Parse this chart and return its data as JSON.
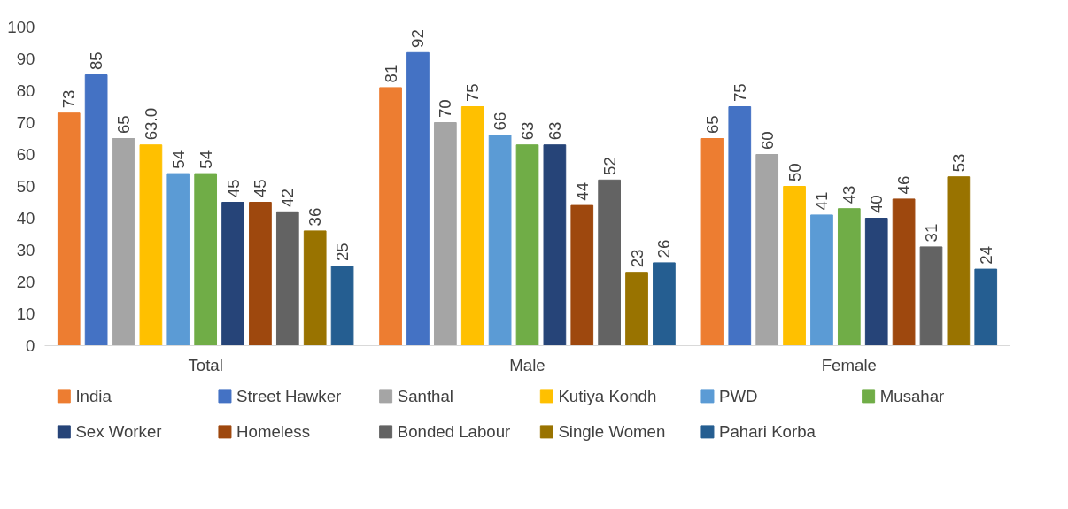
{
  "chart_data": {
    "type": "bar",
    "categories": [
      "Total",
      "Male",
      "Female"
    ],
    "series": [
      {
        "name": "India",
        "color": "#ed7d31",
        "values": [
          73,
          81,
          65
        ]
      },
      {
        "name": "Street Hawker",
        "color": "#4472c4",
        "values": [
          85,
          92,
          75
        ]
      },
      {
        "name": "Santhal",
        "color": "#a5a5a5",
        "values": [
          65,
          70,
          60
        ]
      },
      {
        "name": "Kutiya Kondh",
        "color": "#ffc000",
        "values": [
          63,
          75,
          50
        ],
        "value_labels": [
          "63.0",
          "75",
          "50"
        ]
      },
      {
        "name": "PWD",
        "color": "#5b9bd5",
        "values": [
          54,
          66,
          41
        ]
      },
      {
        "name": "Musahar",
        "color": "#70ad47",
        "values": [
          54,
          63,
          43
        ]
      },
      {
        "name": "Sex Worker",
        "color": "#264478",
        "values": [
          45,
          63,
          40
        ]
      },
      {
        "name": "Homeless",
        "color": "#9e480e",
        "values": [
          45,
          44,
          46
        ]
      },
      {
        "name": "Bonded Labour",
        "color": "#636363",
        "values": [
          42,
          52,
          31
        ]
      },
      {
        "name": "Single Women",
        "color": "#997300",
        "values": [
          36,
          23,
          53
        ]
      },
      {
        "name": "Pahari Korba",
        "color": "#255e91",
        "values": [
          25,
          26,
          24
        ]
      }
    ],
    "ylim": [
      0,
      100
    ],
    "yticks": [
      0,
      10,
      20,
      30,
      40,
      50,
      60,
      70,
      80,
      90,
      100
    ],
    "data_labels": true,
    "legend": "bottom",
    "grid": false
  }
}
